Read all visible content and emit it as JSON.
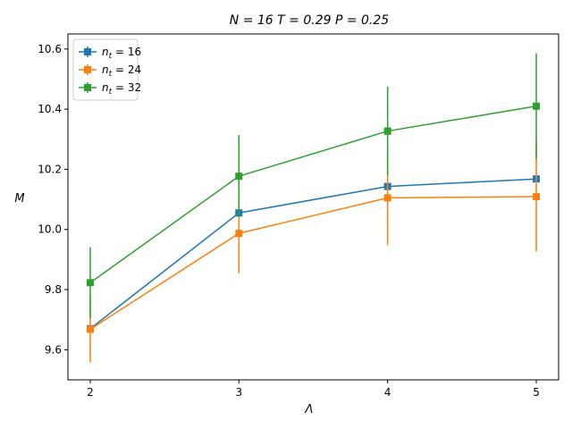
{
  "chart_data": {
    "type": "line",
    "title": "N = 16  T = 0.29  P = 0.25",
    "xlabel": "Λ",
    "ylabel": "M",
    "x": [
      2,
      3,
      4,
      5
    ],
    "xticks": [
      "2",
      "3",
      "4",
      "5"
    ],
    "yticks": [
      "9.6",
      "9.8",
      "10.0",
      "10.2",
      "10.4",
      "10.6"
    ],
    "ylim": [
      9.5,
      10.65
    ],
    "xlim": [
      1.85,
      5.15
    ],
    "grid": false,
    "legend_position": "top-left",
    "series": [
      {
        "name": "n_t = 16",
        "name_base": "n",
        "name_sub": "t",
        "name_val": " = 16",
        "color": "#1f77b4",
        "values": [
          9.67,
          10.055,
          10.143,
          10.168
        ],
        "errors": [
          0.0,
          0.0,
          0.0,
          0.0
        ]
      },
      {
        "name": "n_t = 24",
        "name_base": "n",
        "name_sub": "t",
        "name_val": " = 24",
        "color": "#ff7f0e",
        "values": [
          9.668,
          9.987,
          10.105,
          10.109
        ],
        "errors": [
          0.11,
          0.133,
          0.157,
          0.182
        ]
      },
      {
        "name": "n_t = 32",
        "name_base": "n",
        "name_sub": "t",
        "name_val": " = 32",
        "color": "#2ca02c",
        "values": [
          9.823,
          10.177,
          10.327,
          10.41
        ],
        "errors": [
          0.118,
          0.137,
          0.148,
          0.176
        ]
      }
    ]
  }
}
